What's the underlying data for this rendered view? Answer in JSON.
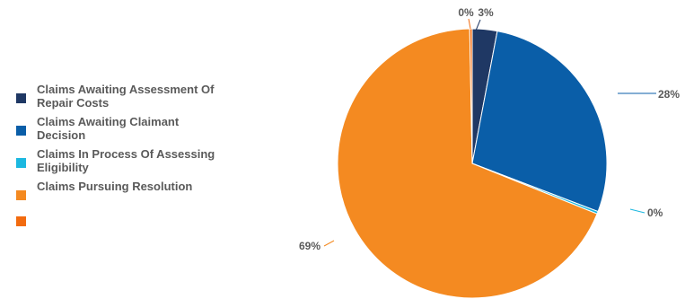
{
  "chart_data": {
    "type": "pie",
    "title": "",
    "legend_position": "left",
    "series": [
      {
        "name": "",
        "slices": [
          {
            "label": "Claims Awaiting Assessment Of Repair Costs",
            "value": 3,
            "display": "3%",
            "color": "#1f3864"
          },
          {
            "label": "Claims Awaiting Claimant Decision",
            "value": 28,
            "display": "28%",
            "color": "#0a5ea8"
          },
          {
            "label": "Claims In Process Of Assessing Eligibility",
            "value": 0.3,
            "display": "0%",
            "color": "#1cb8e0"
          },
          {
            "label": "Claims Pursuing Resolution",
            "value": 69,
            "display": "69%",
            "color": "#f48a21"
          },
          {
            "label": "",
            "value": 0.3,
            "display": "0%",
            "color": "#f26b0f"
          }
        ]
      }
    ]
  }
}
